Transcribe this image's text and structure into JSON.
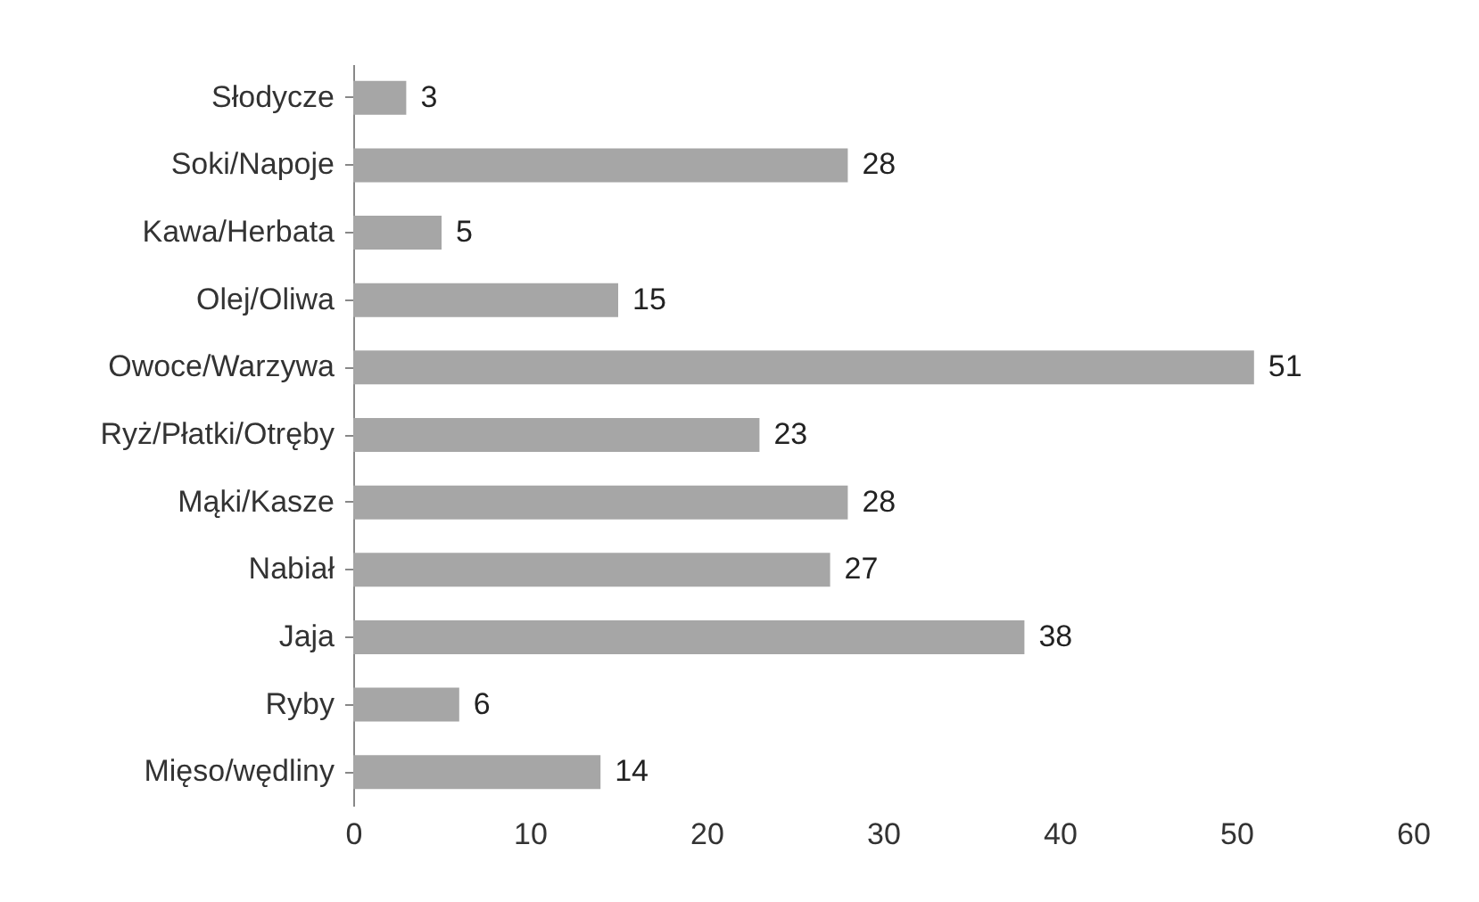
{
  "chart_data": {
    "type": "bar",
    "orientation": "horizontal",
    "categories": [
      "Słodycze",
      "Soki/Napoje",
      "Kawa/Herbata",
      "Olej/Oliwa",
      "Owoce/Warzywa",
      "Ryż/Płatki/Otręby",
      "Mąki/Kasze",
      "Nabiał",
      "Jaja",
      "Ryby",
      "Mięso/wędliny"
    ],
    "values": [
      3,
      28,
      5,
      15,
      51,
      23,
      28,
      27,
      38,
      6,
      14
    ],
    "color": "#a6a6a6",
    "xlim": [
      0,
      60
    ],
    "xticks": [
      0,
      10,
      20,
      30,
      40,
      50,
      60
    ],
    "data_labels": true,
    "grid": false
  }
}
